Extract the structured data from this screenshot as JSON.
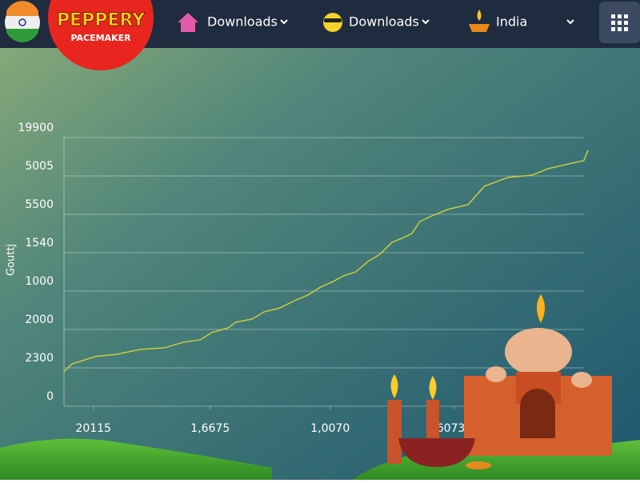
{
  "nav": {
    "logo_title": "PEPPERY",
    "logo_subtitle": "PACEMAKER",
    "items": [
      "Downloads",
      "Downloads",
      "India"
    ]
  },
  "chart_data": {
    "type": "line",
    "y_label": "Gouttj",
    "x": [
      0,
      1.5,
      6.1,
      9.9,
      14.5,
      19.1,
      22.9,
      26,
      28.2,
      31.3,
      32.8,
      35.9,
      38.2,
      41.2,
      44.3,
      46.6,
      48.9,
      51.1,
      53.4,
      55.7,
      58,
      60.3,
      62.6,
      64.9,
      66.4,
      67.9,
      70.2,
      73.3,
      77.1,
      80.2,
      84.7,
      89.3,
      92.4,
      96.2,
      99.2,
      100
    ],
    "series": [
      {
        "color": "#c9cc3f",
        "values": [
          0.9,
          1.1,
          1.3,
          1.35,
          1.48,
          1.52,
          1.67,
          1.73,
          1.92,
          2.04,
          2.19,
          2.27,
          2.46,
          2.56,
          2.77,
          2.9,
          3.1,
          3.23,
          3.4,
          3.5,
          3.77,
          3.96,
          4.27,
          4.4,
          4.5,
          4.81,
          4.96,
          5.13,
          5.25,
          5.73,
          5.96,
          6.02,
          6.19,
          6.31,
          6.4,
          6.67
        ]
      }
    ],
    "xlim": [
      0,
      100
    ],
    "xticks": [
      {
        "value": 5.6,
        "label": "20115"
      },
      {
        "value": 27.9,
        "label": "1,6675"
      },
      {
        "value": 50.8,
        "label": "1,0070"
      },
      {
        "value": 74.5,
        "label": "60735"
      }
    ],
    "ylim": [
      0,
      7
    ],
    "yticks": [
      {
        "value": 0,
        "label": "0"
      },
      {
        "value": 1,
        "label": "2300"
      },
      {
        "value": 2,
        "label": "2000"
      },
      {
        "value": 3,
        "label": "1000"
      },
      {
        "value": 4,
        "label": "1540"
      },
      {
        "value": 5,
        "label": "5500"
      },
      {
        "value": 6,
        "label": "5005"
      },
      {
        "value": 7,
        "label": "19900"
      }
    ],
    "grid": true
  }
}
